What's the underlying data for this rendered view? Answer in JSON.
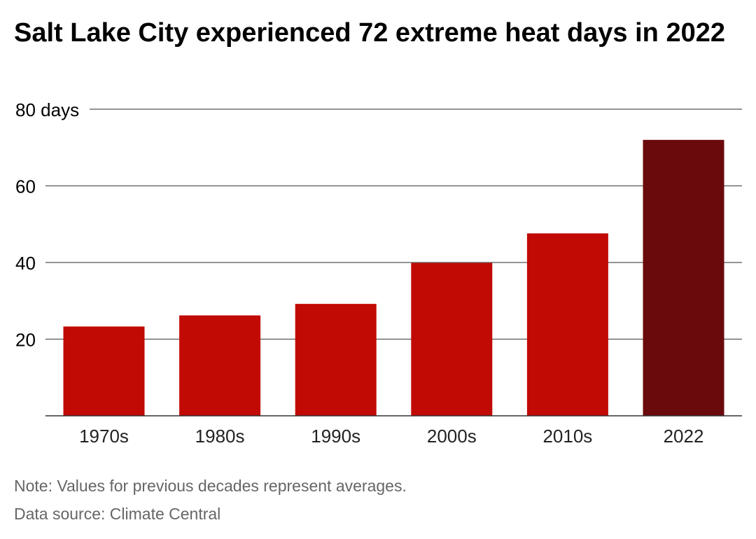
{
  "chart_data": {
    "type": "bar",
    "title": "Salt Lake City experienced 72 extreme heat days in 2022",
    "xlabel": "",
    "ylabel": "",
    "categories": [
      "1970s",
      "1980s",
      "1990s",
      "2000s",
      "2010s",
      "2022"
    ],
    "values": [
      23.3,
      26.2,
      29.2,
      39.9,
      47.6,
      72
    ],
    "bar_colors": [
      "#c20a05",
      "#c20a05",
      "#c20a05",
      "#c20a05",
      "#c20a05",
      "#6b0a0c"
    ],
    "ylim": [
      0,
      80
    ],
    "y_ticks": [
      {
        "value": 80,
        "label": "80 days"
      },
      {
        "value": 60,
        "label": "60"
      },
      {
        "value": 40,
        "label": "40"
      },
      {
        "value": 20,
        "label": "20"
      }
    ],
    "grid": true,
    "legend": "none"
  },
  "notes": {
    "note": "Note: Values for previous decades represent averages.",
    "source": "Data source: Climate Central"
  }
}
